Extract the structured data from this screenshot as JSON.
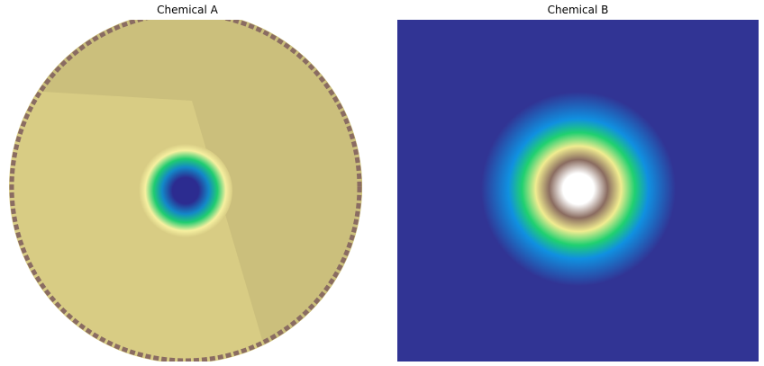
{
  "chart_data": [
    {
      "type": "heatmap",
      "title": "Chemical A",
      "colormap": "terrain",
      "domain": "disk",
      "colors": {
        "background": "#d8cc84",
        "shade": "#cbbf7c",
        "rim": "#8a6c62",
        "ring_pale": "#f6f0a0",
        "ring_green": "#20cc70",
        "ring_blue": "#1388c8",
        "core": "#2c2c90"
      }
    },
    {
      "type": "heatmap",
      "title": "Chemical B",
      "colormap": "terrain",
      "domain": "square",
      "colors": {
        "background": "#313494",
        "glow": "#1090e0",
        "ring_green": "#20d070",
        "ring_yellow": "#f0ec90",
        "ring_brown": "#8a6c60",
        "core": "#ffffff"
      }
    }
  ]
}
